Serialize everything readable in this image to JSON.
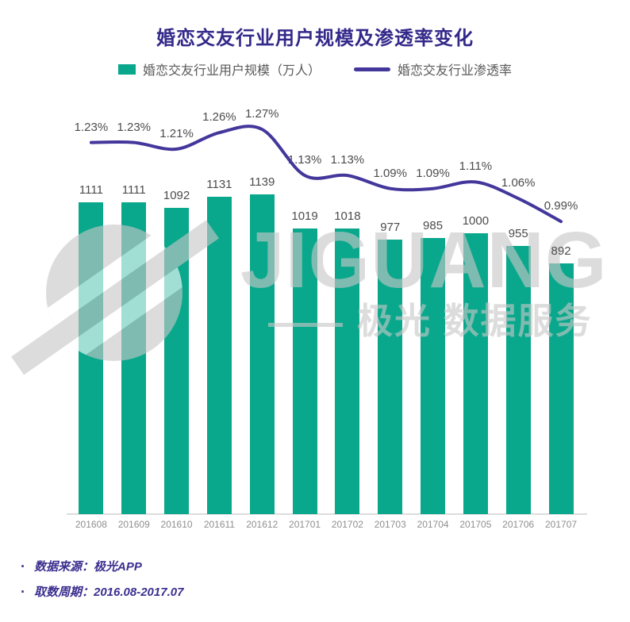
{
  "title": "婚恋交友行业用户规模及渗透率变化",
  "legend": {
    "items": [
      {
        "label": "婚恋交友行业用户规模（万人）",
        "type": "bar"
      },
      {
        "label": "婚恋交友行业渗透率",
        "type": "line"
      }
    ]
  },
  "colors": {
    "bar": "#09a88c",
    "line": "#43379b",
    "title": "#33298a",
    "data_label": "#4c4c4c",
    "x_label": "#8f8f8f",
    "footnote": "#3b2f8f",
    "watermark": "#c7c7c7"
  },
  "chart_data": {
    "type": "bar",
    "subtype": "bar-with-line-overlay",
    "title": "婚恋交友行业用户规模及渗透率变化",
    "categories": [
      "201608",
      "201609",
      "201610",
      "201611",
      "201612",
      "201701",
      "201702",
      "201703",
      "201704",
      "201705",
      "201706",
      "201707"
    ],
    "series": [
      {
        "name": "婚恋交友行业用户规模（万人）",
        "type": "bar",
        "values": [
          1111,
          1111,
          1092,
          1131,
          1139,
          1019,
          1018,
          977,
          985,
          1000,
          955,
          892
        ]
      },
      {
        "name": "婚恋交友行业渗透率",
        "type": "line",
        "values": [
          1.23,
          1.23,
          1.21,
          1.26,
          1.27,
          1.13,
          1.13,
          1.09,
          1.09,
          1.11,
          1.06,
          0.99
        ],
        "labels": [
          "1.23%",
          "1.23%",
          "1.21%",
          "1.26%",
          "1.27%",
          "1.13%",
          "1.13%",
          "1.09%",
          "1.09%",
          "1.11%",
          "1.06%",
          "0.99%"
        ]
      }
    ],
    "xlabel": "",
    "ylabel": "",
    "bar_axis_min": 0,
    "axes_visible": false,
    "grid": false,
    "legend_position": "top",
    "data_labels_visible": true
  },
  "watermark": {
    "brand": "JIGUANG",
    "cn": "极光 数据服务"
  },
  "footnotes": {
    "bullet_char": "·",
    "items": [
      {
        "label": "数据来源：极光APP"
      },
      {
        "label": "取数周期：2016.08-2017.07"
      }
    ]
  }
}
